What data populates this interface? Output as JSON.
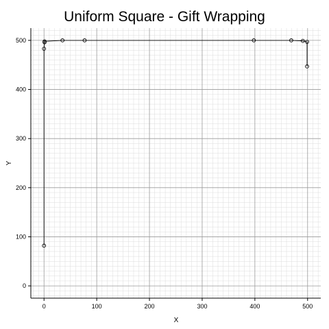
{
  "chart_data": {
    "type": "line",
    "title": "Uniform Square - Gift Wrapping",
    "xlabel": "X",
    "ylabel": "Y",
    "xlim": [
      -25,
      525
    ],
    "ylim": [
      -25,
      525
    ],
    "xticks": [
      0,
      100,
      200,
      300,
      400,
      500
    ],
    "yticks": [
      0,
      100,
      200,
      300,
      400,
      500
    ],
    "grid": true,
    "minor_grid": true,
    "legend": "none",
    "series": [
      {
        "color": "#000000",
        "marker": "open-circle",
        "points": [
          [
            0,
            82
          ],
          [
            0,
            483
          ],
          [
            1,
            496
          ],
          [
            1,
            498
          ],
          [
            35,
            500
          ],
          [
            77,
            500
          ],
          [
            398,
            500
          ],
          [
            469,
            500
          ],
          [
            491,
            499
          ],
          [
            499,
            497
          ],
          [
            499,
            447
          ]
        ]
      }
    ]
  }
}
